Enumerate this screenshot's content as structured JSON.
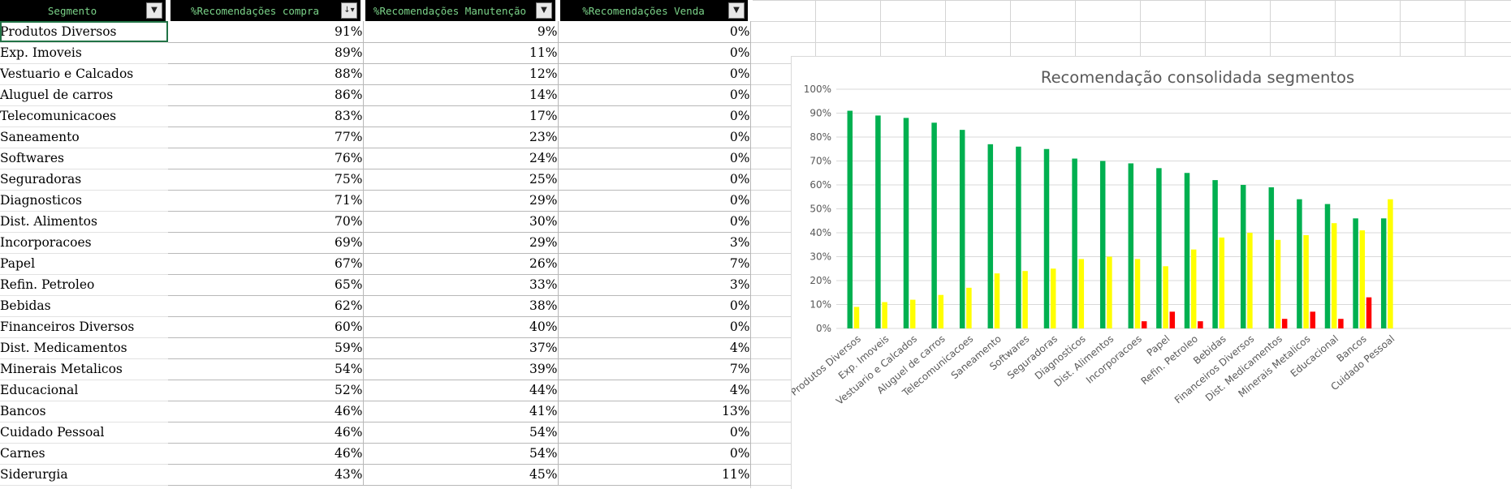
{
  "sheet": {
    "headers": [
      "Segmento",
      "%Recomendações compra",
      "%Recomendações Manutenção",
      "%Recomendações Venda"
    ],
    "filter_icon": "dropdown-arrow-icon",
    "sort_icon": "sort-descending-icon",
    "rows": [
      [
        "Produtos Diversos",
        "91%",
        "9%",
        "0%"
      ],
      [
        "Exp. Imoveis",
        "89%",
        "11%",
        "0%"
      ],
      [
        "Vestuario e Calcados",
        "88%",
        "12%",
        "0%"
      ],
      [
        "Aluguel de carros",
        "86%",
        "14%",
        "0%"
      ],
      [
        "Telecomunicacoes",
        "83%",
        "17%",
        "0%"
      ],
      [
        "Saneamento",
        "77%",
        "23%",
        "0%"
      ],
      [
        "Softwares",
        "76%",
        "24%",
        "0%"
      ],
      [
        "Seguradoras",
        "75%",
        "25%",
        "0%"
      ],
      [
        "Diagnosticos",
        "71%",
        "29%",
        "0%"
      ],
      [
        "Dist. Alimentos",
        "70%",
        "30%",
        "0%"
      ],
      [
        "Incorporacoes",
        "69%",
        "29%",
        "3%"
      ],
      [
        "Papel",
        "67%",
        "26%",
        "7%"
      ],
      [
        "Refin. Petroleo",
        "65%",
        "33%",
        "3%"
      ],
      [
        "Bebidas",
        "62%",
        "38%",
        "0%"
      ],
      [
        "Financeiros Diversos",
        "60%",
        "40%",
        "0%"
      ],
      [
        "Dist. Medicamentos",
        "59%",
        "37%",
        "4%"
      ],
      [
        "Minerais Metalicos",
        "54%",
        "39%",
        "7%"
      ],
      [
        "Educacional",
        "52%",
        "44%",
        "4%"
      ],
      [
        "Bancos",
        "46%",
        "41%",
        "13%"
      ],
      [
        "Cuidado Pessoal",
        "46%",
        "54%",
        "0%"
      ],
      [
        "Carnes",
        "46%",
        "54%",
        "0%"
      ],
      [
        "Siderurgia",
        "43%",
        "45%",
        "11%"
      ]
    ]
  },
  "colors": {
    "header_bg": "#000000",
    "header_text": "#7bd389",
    "series_compra": "#00b050",
    "series_manutencao": "#ffff00",
    "series_venda": "#ff0000",
    "selection": "#217346"
  },
  "chart_data": {
    "type": "bar",
    "title": "Recomendação consolidada segmentos",
    "xlabel": "",
    "ylabel": "",
    "ylim": [
      0,
      100
    ],
    "y_ticks": [
      "0%",
      "10%",
      "20%",
      "30%",
      "40%",
      "50%",
      "60%",
      "70%",
      "80%",
      "90%",
      "100%"
    ],
    "grid": true,
    "categories": [
      "Produtos Diversos",
      "Exp. Imoveis",
      "Vestuario e Calcados",
      "Aluguel de carros",
      "Telecomunicacoes",
      "Saneamento",
      "Softwares",
      "Seguradoras",
      "Diagnosticos",
      "Dist. Alimentos",
      "Incorporacoes",
      "Papel",
      "Refin. Petroleo",
      "Bebidas",
      "Financeiros Diversos",
      "Dist. Medicamentos",
      "Minerais Metalicos",
      "Educacional",
      "Bancos",
      "Cuidado Pessoal"
    ],
    "series": [
      {
        "values": [
          91,
          89,
          88,
          86,
          83,
          77,
          76,
          75,
          71,
          70,
          69,
          67,
          65,
          62,
          60,
          59,
          54,
          52,
          46,
          46
        ],
        "color": "#00b050"
      },
      {
        "values": [
          9,
          11,
          12,
          14,
          17,
          23,
          24,
          25,
          29,
          30,
          29,
          26,
          33,
          38,
          40,
          37,
          39,
          44,
          41,
          54
        ],
        "color": "#ffff00"
      },
      {
        "values": [
          0,
          0,
          0,
          0,
          0,
          0,
          0,
          0,
          0,
          0,
          3,
          7,
          3,
          0,
          0,
          4,
          7,
          4,
          13,
          0
        ],
        "color": "#ff0000"
      }
    ]
  }
}
